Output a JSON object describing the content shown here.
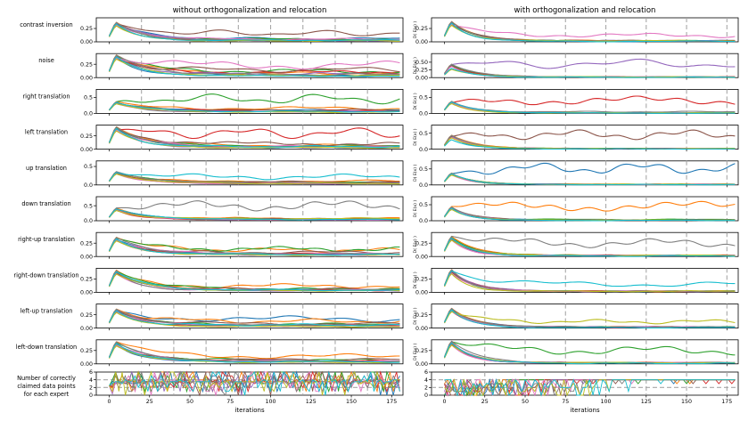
{
  "chart_data": {
    "type": "line",
    "titles": [
      "without orthogonalization and relocation",
      "with orthogonalization and relocation"
    ],
    "xlabel": "iterations",
    "ylabel_right": "D( E(x) )",
    "xlim": [
      -8,
      182
    ],
    "xticks": [
      0,
      25,
      50,
      75,
      100,
      125,
      150,
      175
    ],
    "relocation_lines": {
      "left": [
        20,
        40,
        60,
        80,
        100,
        120,
        140,
        160
      ],
      "right": [
        25,
        50,
        75,
        100,
        125,
        150,
        175
      ]
    },
    "series_colors": [
      "#1f77b4",
      "#ff7f0e",
      "#2ca02c",
      "#d62728",
      "#9467bd",
      "#8c564b",
      "#e377c2",
      "#7f7f7f",
      "#bcbd22",
      "#17becf"
    ],
    "rows": [
      {
        "label": "contrast inversion",
        "left": {
          "yticks": [
            "0.00",
            "0.25"
          ],
          "ymax": 0.45,
          "plateaus": [
            0.06,
            0.04,
            0.05,
            0.03,
            0.02,
            0.16,
            0.05,
            0.03,
            0.02,
            0.03
          ]
        },
        "right": {
          "yticks": [
            "0.00",
            "0.25"
          ],
          "ymax": 0.45,
          "plateaus": [
            0.01,
            0.02,
            0.02,
            0.02,
            0.02,
            0.02,
            0.12,
            0.02,
            0.02,
            0.01
          ],
          "dominant": 6
        }
      },
      {
        "label": "noise",
        "left": {
          "yticks": [
            "0.00",
            "0.25"
          ],
          "ymax": 0.45,
          "plateaus": [
            0.05,
            0.08,
            0.12,
            0.1,
            0.07,
            0.15,
            0.23,
            0.06,
            0.04,
            0.03
          ]
        },
        "right": {
          "yticks": [
            "0.00",
            "0.25",
            "0.50"
          ],
          "ymax": 0.78,
          "plateaus": [
            0.02,
            0.02,
            0.02,
            0.02,
            0.45,
            0.02,
            0.02,
            0.02,
            0.02,
            0.01
          ],
          "dominant": 4
        }
      },
      {
        "label": "right translation",
        "left": {
          "yticks": [
            "0.0",
            "0.5"
          ],
          "ymax": 0.75,
          "plateaus": [
            0.1,
            0.16,
            0.45,
            0.08,
            0.06,
            0.1,
            0.05,
            0.05,
            0.04,
            0.06
          ]
        },
        "right": {
          "yticks": [
            "0.0",
            "0.5"
          ],
          "ymax": 0.75,
          "plateaus": [
            0.02,
            0.02,
            0.02,
            0.4,
            0.02,
            0.02,
            0.02,
            0.05,
            0.02,
            0.01
          ],
          "dominant": 3
        }
      },
      {
        "label": "left translation",
        "left": {
          "yticks": [
            "0.00",
            "0.25"
          ],
          "ymax": 0.45,
          "plateaus": [
            0.03,
            0.07,
            0.06,
            0.3,
            0.04,
            0.1,
            0.05,
            0.04,
            0.03,
            0.05
          ]
        },
        "right": {
          "yticks": [
            "0.0",
            "0.5"
          ],
          "ymax": 0.75,
          "plateaus": [
            0.02,
            0.02,
            0.02,
            0.02,
            0.02,
            0.45,
            0.02,
            0.02,
            0.02,
            0.01
          ],
          "dominant": 5
        }
      },
      {
        "label": "up translation",
        "left": {
          "yticks": [
            "0.0",
            "0.5"
          ],
          "ymax": 0.65,
          "plateaus": [
            0.05,
            0.1,
            0.07,
            0.05,
            0.03,
            0.08,
            0.05,
            0.06,
            0.04,
            0.22
          ]
        },
        "right": {
          "yticks": [
            "0.0",
            "0.5"
          ],
          "ymax": 0.75,
          "plateaus": [
            0.52,
            0.02,
            0.02,
            0.02,
            0.02,
            0.02,
            0.02,
            0.02,
            0.02,
            0.01
          ],
          "dominant": 0
        }
      },
      {
        "label": "down translation",
        "left": {
          "yticks": [
            "0.0",
            "0.5"
          ],
          "ymax": 0.8,
          "plateaus": [
            0.05,
            0.08,
            0.06,
            0.04,
            0.03,
            0.06,
            0.04,
            0.5,
            0.07,
            0.04
          ]
        },
        "right": {
          "yticks": [
            "0.0",
            "0.5"
          ],
          "ymax": 0.75,
          "plateaus": [
            0.02,
            0.45,
            0.04,
            0.02,
            0.02,
            0.02,
            0.02,
            0.02,
            0.02,
            0.01
          ],
          "dominant": 1
        }
      },
      {
        "label": "right-up translation",
        "left": {
          "yticks": [
            "0.00",
            "0.25"
          ],
          "ymax": 0.45,
          "plateaus": [
            0.04,
            0.12,
            0.14,
            0.05,
            0.04,
            0.08,
            0.05,
            0.05,
            0.03,
            0.04
          ]
        },
        "right": {
          "yticks": [
            "0.00",
            "0.25"
          ],
          "ymax": 0.45,
          "plateaus": [
            0.02,
            0.02,
            0.02,
            0.02,
            0.02,
            0.02,
            0.02,
            0.25,
            0.02,
            0.01
          ],
          "dominant": 7
        }
      },
      {
        "label": "right-down translation",
        "left": {
          "yticks": [
            "0.00",
            "0.25"
          ],
          "ymax": 0.45,
          "plateaus": [
            0.05,
            0.12,
            0.06,
            0.04,
            0.03,
            0.06,
            0.04,
            0.04,
            0.03,
            0.04
          ]
        },
        "right": {
          "yticks": [
            "0.00",
            "0.25"
          ],
          "ymax": 0.45,
          "plateaus": [
            0.02,
            0.02,
            0.02,
            0.02,
            0.02,
            0.02,
            0.02,
            0.02,
            0.02,
            0.15
          ],
          "dominant": 9
        }
      },
      {
        "label": "left-up translation",
        "left": {
          "yticks": [
            "0.00",
            "0.25"
          ],
          "ymax": 0.45,
          "plateaus": [
            0.17,
            0.13,
            0.07,
            0.05,
            0.04,
            0.08,
            0.05,
            0.05,
            0.03,
            0.06
          ]
        },
        "right": {
          "yticks": [
            "0.00",
            "0.25"
          ],
          "ymax": 0.45,
          "plateaus": [
            0.02,
            0.02,
            0.02,
            0.02,
            0.02,
            0.02,
            0.02,
            0.02,
            0.12,
            0.01
          ],
          "dominant": 8
        }
      },
      {
        "label": "left-down translation",
        "left": {
          "yticks": [
            "0.00",
            "0.25"
          ],
          "ymax": 0.45,
          "plateaus": [
            0.04,
            0.14,
            0.07,
            0.05,
            0.04,
            0.08,
            0.05,
            0.05,
            0.03,
            0.04
          ]
        },
        "right": {
          "yticks": [
            "0.00",
            "0.25"
          ],
          "ymax": 0.45,
          "plateaus": [
            0.02,
            0.02,
            0.25,
            0.02,
            0.02,
            0.02,
            0.02,
            0.02,
            0.02,
            0.01
          ],
          "dominant": 2
        }
      }
    ],
    "bottom": {
      "label_lines": [
        "Number of correctly",
        "claimed data points",
        "for each expert"
      ],
      "yticks": [
        "0",
        "2",
        "4",
        "6"
      ],
      "ylim": [
        0,
        6
      ],
      "hlines": [
        2,
        4
      ],
      "left_level": 3.5,
      "right_level": 4
    }
  }
}
